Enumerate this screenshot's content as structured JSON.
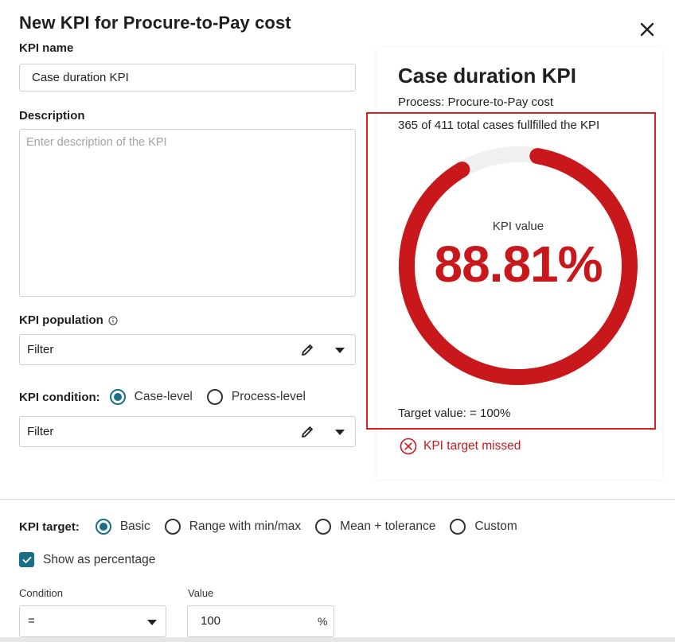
{
  "dialog": {
    "title": "New KPI for Procure-to-Pay cost"
  },
  "form": {
    "kpi_name_label": "KPI name",
    "kpi_name_value": "Case duration KPI",
    "description_label": "Description",
    "description_placeholder": "Enter description of the KPI",
    "population_label": "KPI population",
    "population_filter": "Filter",
    "condition_label": "KPI condition:",
    "condition_options": [
      {
        "label": "Case-level",
        "selected": true
      },
      {
        "label": "Process-level",
        "selected": false
      }
    ],
    "condition_filter": "Filter",
    "target_label": "KPI target:",
    "target_options": [
      {
        "label": "Basic",
        "selected": true
      },
      {
        "label": "Range with min/max",
        "selected": false
      },
      {
        "label": "Mean + tolerance",
        "selected": false
      },
      {
        "label": "Custom",
        "selected": false
      }
    ],
    "show_percentage_label": "Show as percentage",
    "show_percentage_checked": true,
    "condition_small_label": "Condition",
    "condition_select_value": "=",
    "value_small_label": "Value",
    "value_input": "100",
    "value_unit": "%"
  },
  "preview": {
    "title": "Case duration KPI",
    "process": "Process: Procure-to-Pay cost",
    "cases_text": "365 of 411 total cases fullfilled the KPI",
    "kpi_value_label": "KPI value",
    "kpi_value": "88.81%",
    "gauge_fraction": 0.8881,
    "target_value": "Target value: = 100%",
    "status": "KPI target missed"
  },
  "colors": {
    "accent": "#1a6f87",
    "danger": "#c8181c",
    "gauge_track": "#f0f0f0",
    "highlight_border": "#e02020"
  },
  "icons": {
    "close": "close-icon",
    "info": "info-icon",
    "edit": "pencil-icon",
    "dropdown": "caret-down-icon",
    "check": "check-icon",
    "error": "error-circle-icon"
  }
}
